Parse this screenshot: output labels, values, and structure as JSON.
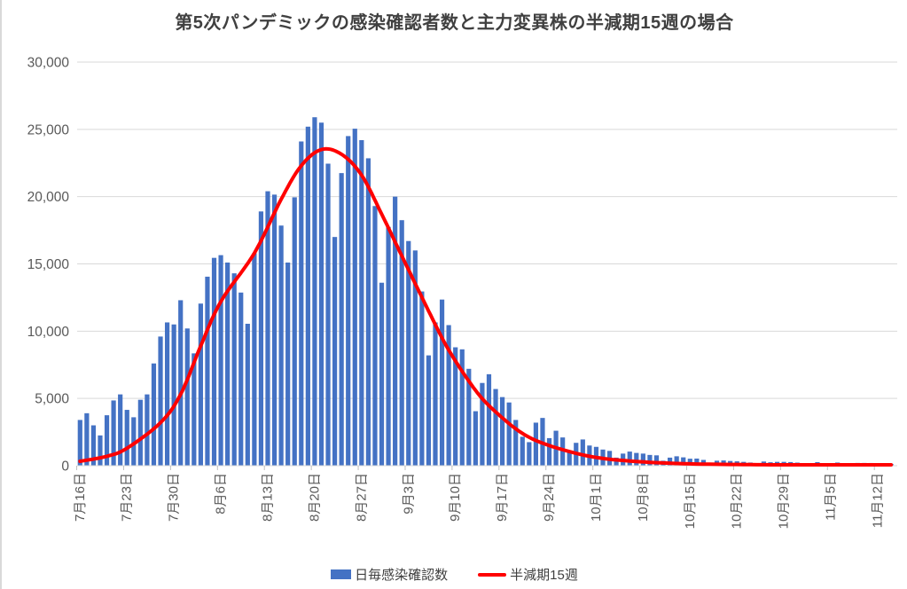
{
  "title": "第5次パンデミックの感染確認者数と主力変異株の半減期15週の場合",
  "colors": {
    "bar": "#4472C4",
    "line": "#FF0000",
    "grid": "#D9D9D9",
    "axis_line": "#BFBFBF",
    "axis_text": "#595959",
    "title_text": "#404040"
  },
  "legend": [
    {
      "type": "bar",
      "label": "日毎感染確認数"
    },
    {
      "type": "line",
      "label": "半減期15週"
    }
  ],
  "chart_data": {
    "type": "bar+line",
    "title": "第5次パンデミックの感染確認者数と主力変異株の半減期15週の場合",
    "grid": true,
    "legend_position": "bottom",
    "date_range": {
      "start": "7/16",
      "end": "11/14",
      "interval": "daily"
    },
    "y_axis": {
      "min": 0,
      "max": 30000,
      "step": 5000,
      "tick_labels": [
        "0",
        "5,000",
        "10,000",
        "15,000",
        "20,000",
        "25,000",
        "30,000"
      ]
    },
    "x_axis": {
      "tick_every_days": 7,
      "tick_labels": [
        "7月16日",
        "7月23日",
        "7月30日",
        "8月6日",
        "8月13日",
        "8月20日",
        "8月27日",
        "9月3日",
        "9月10日",
        "9月17日",
        "9月24日",
        "10月1日",
        "10月8日",
        "10月15日",
        "10月22日",
        "10月29日",
        "11月5日",
        "11月12日"
      ]
    },
    "series": [
      {
        "name": "日毎感染確認数",
        "type": "bar",
        "values": [
          3400,
          3900,
          3000,
          2250,
          3750,
          4850,
          5300,
          4150,
          3600,
          4900,
          5300,
          7600,
          9600,
          10650,
          10500,
          12300,
          10200,
          8350,
          12050,
          14050,
          15450,
          15650,
          15100,
          14300,
          12870,
          10550,
          15800,
          18900,
          20400,
          20150,
          17850,
          15100,
          19950,
          24100,
          25200,
          25900,
          25500,
          22450,
          17000,
          21750,
          24500,
          25050,
          24200,
          22850,
          19300,
          13600,
          17750,
          20000,
          18250,
          16700,
          16000,
          12950,
          8200,
          10650,
          12350,
          10450,
          8800,
          8650,
          7200,
          4050,
          6150,
          6800,
          5700,
          5100,
          4700,
          3400,
          2150,
          1750,
          3200,
          3550,
          2050,
          2600,
          2100,
          1100,
          1700,
          1950,
          1500,
          1400,
          1200,
          1100,
          600,
          900,
          1050,
          950,
          900,
          800,
          770,
          370,
          600,
          700,
          620,
          520,
          530,
          430,
          230,
          370,
          390,
          350,
          325,
          285,
          235,
          150,
          310,
          255,
          285,
          285,
          270,
          230,
          85,
          160,
          265,
          160,
          190,
          235,
          160,
          110,
          205,
          205,
          200,
          165,
          170,
          135
        ]
      },
      {
        "name": "半減期15週",
        "type": "line",
        "peak_value": 23500,
        "control_points": [
          {
            "day": 0,
            "value": 330
          },
          {
            "day": 4,
            "value": 700
          },
          {
            "day": 7,
            "value": 1300
          },
          {
            "day": 12,
            "value": 3200
          },
          {
            "day": 15,
            "value": 5300
          },
          {
            "day": 18,
            "value": 8900
          },
          {
            "day": 21,
            "value": 12200
          },
          {
            "day": 26,
            "value": 15800
          },
          {
            "day": 30,
            "value": 19800
          },
          {
            "day": 33,
            "value": 22300
          },
          {
            "day": 36,
            "value": 23500
          },
          {
            "day": 39,
            "value": 23150
          },
          {
            "day": 42,
            "value": 21600
          },
          {
            "day": 45,
            "value": 18700
          },
          {
            "day": 48,
            "value": 15600
          },
          {
            "day": 52,
            "value": 11500
          },
          {
            "day": 55,
            "value": 8600
          },
          {
            "day": 59,
            "value": 5600
          },
          {
            "day": 62,
            "value": 4000
          },
          {
            "day": 66,
            "value": 2400
          },
          {
            "day": 70,
            "value": 1500
          },
          {
            "day": 76,
            "value": 700
          },
          {
            "day": 82,
            "value": 350
          },
          {
            "day": 90,
            "value": 150
          },
          {
            "day": 100,
            "value": 80
          },
          {
            "day": 110,
            "value": 50
          },
          {
            "day": 121,
            "value": 40
          }
        ]
      }
    ]
  }
}
